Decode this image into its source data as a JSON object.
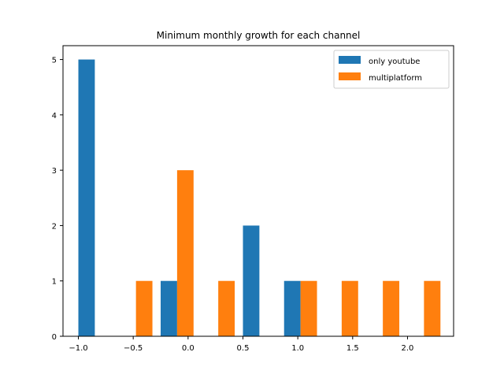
{
  "chart_data": {
    "type": "bar",
    "title": "Minimum monthly growth for each channel",
    "xlabel": "",
    "ylabel": "",
    "xlim": [
      -1.14,
      2.42
    ],
    "ylim": [
      0,
      5.25
    ],
    "xticks": [
      -1.0,
      -0.5,
      0.0,
      0.5,
      1.0,
      1.5,
      2.0
    ],
    "xtick_labels": [
      "−1.0",
      "−0.5",
      "0.0",
      "0.5",
      "1.0",
      "1.5",
      "2.0"
    ],
    "yticks": [
      0,
      1,
      2,
      3,
      4,
      5
    ],
    "ytick_labels": [
      "0",
      "1",
      "2",
      "3",
      "4",
      "5"
    ],
    "bin_width": 0.15,
    "legend_position": "top-right",
    "grid": false,
    "series": [
      {
        "name": "only youtube",
        "color": "#1f77b4",
        "bars": [
          {
            "x": -0.925,
            "value": 5
          },
          {
            "x": -0.55,
            "value": 0
          },
          {
            "x": -0.175,
            "value": 1
          },
          {
            "x": 0.2,
            "value": 0
          },
          {
            "x": 0.575,
            "value": 2
          },
          {
            "x": 0.95,
            "value": 1
          },
          {
            "x": 1.325,
            "value": 0
          },
          {
            "x": 1.7,
            "value": 0
          },
          {
            "x": 2.075,
            "value": 0
          }
        ]
      },
      {
        "name": "multiplatform",
        "color": "#ff7f0e",
        "bars": [
          {
            "x": -0.775,
            "value": 0
          },
          {
            "x": -0.4,
            "value": 1
          },
          {
            "x": -0.025,
            "value": 3
          },
          {
            "x": 0.35,
            "value": 1
          },
          {
            "x": 0.725,
            "value": 0
          },
          {
            "x": 1.1,
            "value": 1
          },
          {
            "x": 1.475,
            "value": 1
          },
          {
            "x": 1.85,
            "value": 1
          },
          {
            "x": 2.225,
            "value": 1
          }
        ]
      }
    ]
  }
}
